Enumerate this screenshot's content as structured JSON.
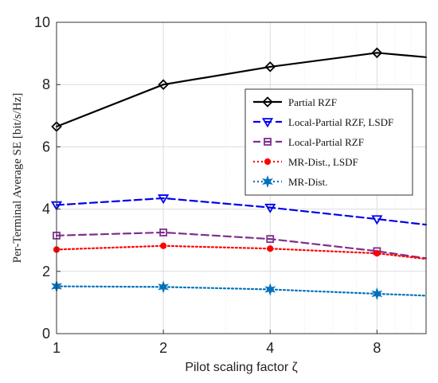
{
  "chart_data": {
    "type": "line",
    "xlabel": "Pilot scaling factor ζ",
    "ylabel": "Per-Terminal Average SE [bit/s/Hz]",
    "x_scale": "log2",
    "xlim": [
      1,
      11
    ],
    "ylim": [
      0,
      10
    ],
    "x_ticks": [
      1,
      2,
      4,
      8
    ],
    "y_ticks": [
      0,
      2,
      4,
      6,
      8,
      10
    ],
    "grid": true,
    "legend_position": "right",
    "series": [
      {
        "name": "Partial RZF",
        "color": "#000000",
        "dash": "solid",
        "marker": "diamond",
        "x": [
          1,
          2,
          4,
          8,
          11
        ],
        "y": [
          6.65,
          8.0,
          8.57,
          9.02,
          8.88
        ]
      },
      {
        "name": "Local-Partial RZF, LSDF",
        "color": "#0000ee",
        "dash": "dashed",
        "marker": "triangle-down",
        "x": [
          1,
          2,
          4,
          8,
          11
        ],
        "y": [
          4.13,
          4.35,
          4.05,
          3.68,
          3.5
        ]
      },
      {
        "name": "Local-Partial RZF",
        "color": "#7e2f8e",
        "dash": "dashed",
        "marker": "square",
        "x": [
          1,
          2,
          4,
          8,
          11
        ],
        "y": [
          3.15,
          3.25,
          3.04,
          2.65,
          2.42
        ]
      },
      {
        "name": "MR-Dist., LSDF",
        "color": "#ff0000",
        "dash": "dotted",
        "marker": "circle",
        "x": [
          1,
          2,
          4,
          8,
          11
        ],
        "y": [
          2.7,
          2.82,
          2.73,
          2.58,
          2.4
        ]
      },
      {
        "name": "MR-Dist.",
        "color": "#0072bd",
        "dash": "dotted",
        "marker": "star",
        "x": [
          1,
          2,
          4,
          8,
          11
        ],
        "y": [
          1.52,
          1.5,
          1.42,
          1.28,
          1.22
        ]
      }
    ]
  }
}
